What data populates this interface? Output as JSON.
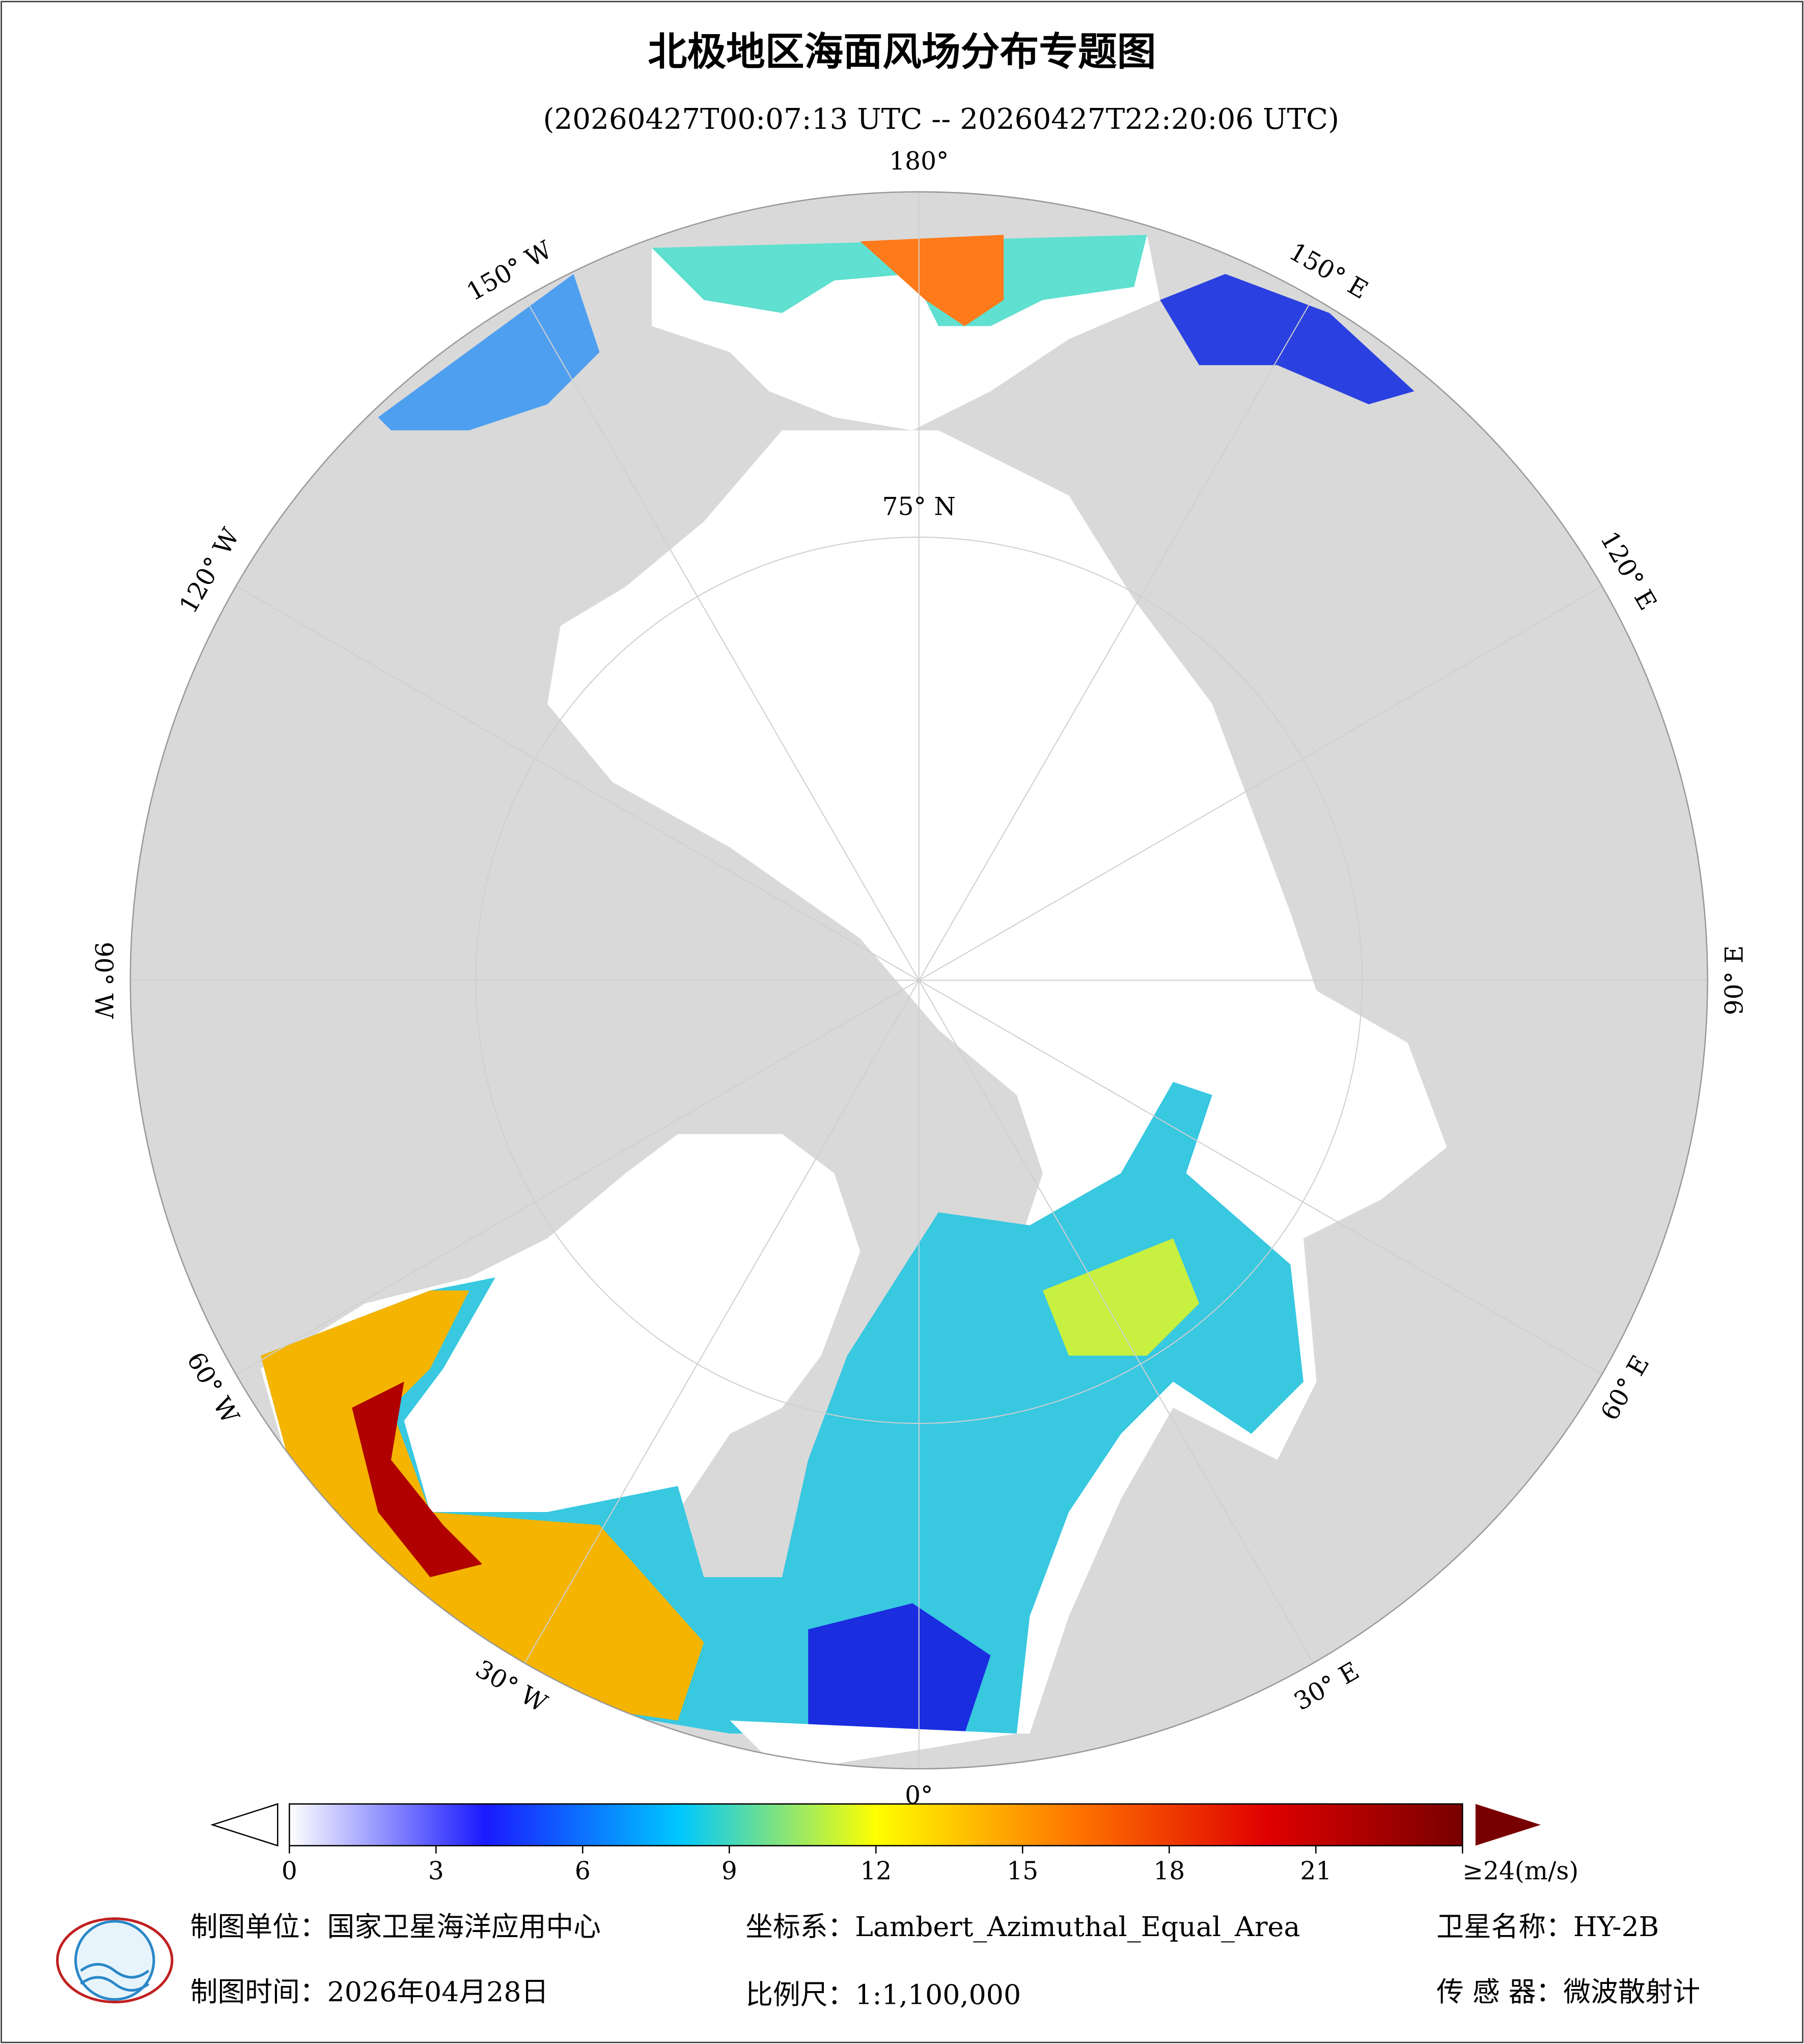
{
  "title": "北极地区海面风场分布专题图",
  "subtitle": "(20260427T00:07:13 UTC -- 20260427T22:20:06 UTC)",
  "map": {
    "projection": "Lambert_Azimuthal_Equal_Area",
    "longitudes": [
      {
        "value": 0,
        "label": "0°"
      },
      {
        "value": 30,
        "label": "30° E"
      },
      {
        "value": 60,
        "label": "60° E"
      },
      {
        "value": 90,
        "label": "90° E"
      },
      {
        "value": 120,
        "label": "120° E"
      },
      {
        "value": 150,
        "label": "150° E"
      },
      {
        "value": 180,
        "label": "180°"
      },
      {
        "value": -150,
        "label": "150° W"
      },
      {
        "value": -120,
        "label": "120° W"
      },
      {
        "value": -90,
        "label": "90° W"
      },
      {
        "value": -60,
        "label": "60° W"
      },
      {
        "value": -30,
        "label": "30° W"
      }
    ],
    "parallels": [
      {
        "value": 75,
        "label": "75° N"
      }
    ]
  },
  "colorbar": {
    "range": [
      0,
      24
    ],
    "ticks": [
      0,
      3,
      6,
      9,
      12,
      15,
      18,
      21,
      {
        "value": 24,
        "label": "≥24(m/s)"
      }
    ],
    "colors": [
      "#ffffff",
      "#1a1aff",
      "#00c8ff",
      "#ffff00",
      "#ff7800",
      "#e00000",
      "#780000"
    ]
  },
  "footer": {
    "unit": "制图单位：国家卫星海洋应用中心",
    "crs": "坐标系：Lambert_Azimuthal_Equal_Area",
    "satellite": "卫星名称：HY-2B",
    "date": "制图时间：2026年04月28日",
    "scale": "比例尺：1:1,100,000",
    "sensor": "传 感 器：微波散射计"
  }
}
